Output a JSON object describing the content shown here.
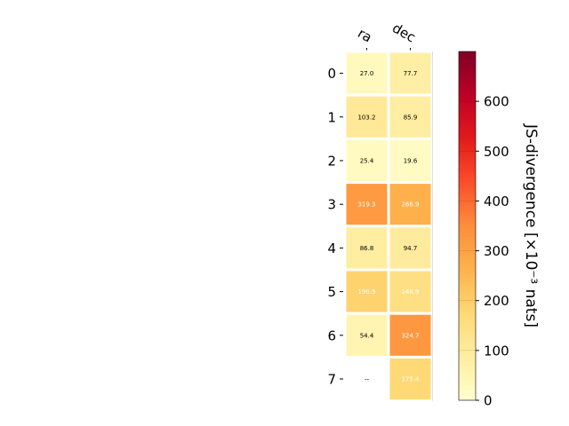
{
  "chart_data": {
    "type": "heatmap",
    "columns": [
      "ra",
      "dec"
    ],
    "rows": [
      "0",
      "1",
      "2",
      "3",
      "4",
      "5",
      "6",
      "7"
    ],
    "values": [
      [
        27.0,
        77.7
      ],
      [
        103.2,
        85.9
      ],
      [
        25.4,
        19.6
      ],
      [
        319.3,
        266.9
      ],
      [
        86.8,
        94.7
      ],
      [
        190.9,
        148.9
      ],
      [
        54.4,
        324.7
      ],
      [
        null,
        175.4
      ]
    ],
    "cell_labels": [
      [
        "27.0",
        "77.7"
      ],
      [
        "103.2",
        "85.9"
      ],
      [
        "25.4",
        "19.6"
      ],
      [
        "319.3",
        "266.9"
      ],
      [
        "86.8",
        "94.7"
      ],
      [
        "190.9",
        "148.9"
      ],
      [
        "54.4",
        "324.7"
      ],
      [
        "--",
        "175.4"
      ]
    ],
    "colorbar": {
      "label": "JS-divergence [×10⁻³ nats]",
      "range": [
        0,
        700
      ],
      "ticks": [
        "0",
        "100",
        "200",
        "300",
        "400",
        "500",
        "600"
      ],
      "tick_values": [
        0,
        100,
        200,
        300,
        400,
        500,
        600
      ],
      "colormap": "YlOrRd"
    },
    "colors": {
      "cmap_stops": [
        "#ffffcc",
        "#ffeda0",
        "#fed976",
        "#feb24c",
        "#fd8d3c",
        "#fc4e2a",
        "#e31a1c",
        "#bd0026",
        "#800026"
      ],
      "text_dark": "#000000",
      "text_light": "#ffffff",
      "grid": "#ffffff"
    }
  }
}
